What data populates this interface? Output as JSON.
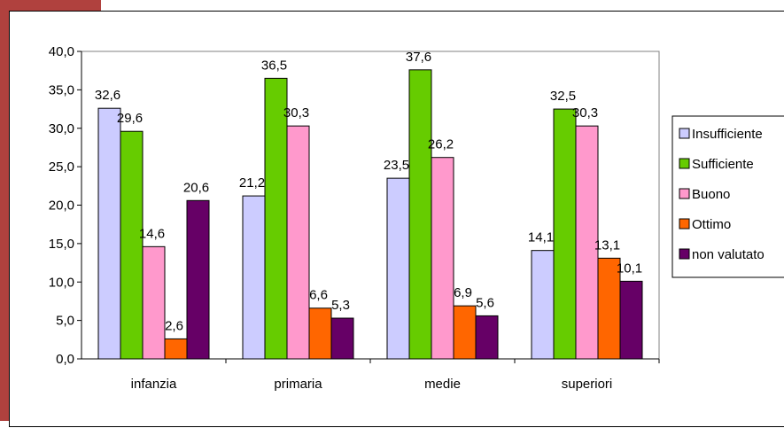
{
  "page": {
    "accent_color": "#b0413e"
  },
  "chart_data": {
    "type": "bar",
    "categories": [
      "infanzia",
      "primaria",
      "medie",
      "superiori"
    ],
    "series": [
      {
        "name": "Insufficiente",
        "color": "#ccccff",
        "values": [
          32.6,
          21.2,
          23.5,
          14.1
        ],
        "labels": [
          "32,6",
          "21,2",
          "23,5",
          "14,1"
        ]
      },
      {
        "name": "Sufficiente",
        "color": "#66cc00",
        "values": [
          29.6,
          36.5,
          37.6,
          32.5
        ],
        "labels": [
          "29,6",
          "36,5",
          "37,6",
          "32,5"
        ]
      },
      {
        "name": "Buono",
        "color": "#ff99cc",
        "values": [
          14.6,
          30.3,
          26.2,
          30.3
        ],
        "labels": [
          "14,6",
          "30,3",
          "26,2",
          "30,3"
        ]
      },
      {
        "name": "Ottimo",
        "color": "#ff6600",
        "values": [
          2.6,
          6.6,
          6.9,
          13.1
        ],
        "labels": [
          "2,6",
          "6,6",
          "6,9",
          "13,1"
        ]
      },
      {
        "name": "non valutato",
        "color": "#660066",
        "values": [
          20.6,
          5.3,
          5.6,
          10.1
        ],
        "labels": [
          "20,6",
          "5,3",
          "5,6",
          "10,1"
        ]
      }
    ],
    "y_ticks": [
      "0,0",
      "5,0",
      "10,0",
      "15,0",
      "20,0",
      "25,0",
      "30,0",
      "35,0",
      "40,0"
    ],
    "ylim": [
      0,
      40
    ],
    "y_step": 5,
    "grid": false,
    "legend": "right",
    "title": "",
    "xlabel": "",
    "ylabel": ""
  }
}
